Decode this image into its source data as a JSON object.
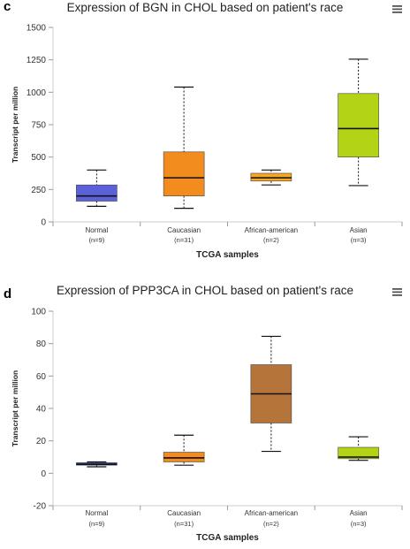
{
  "panels": [
    {
      "letter": "c"
    },
    {
      "letter": "d"
    }
  ],
  "menu_icon": "hamburger-menu-icon",
  "chart_data": [
    {
      "type": "box",
      "title": "Expression of BGN in CHOL based on patient's race",
      "ylabel": "Transcript per million",
      "xlabel": "TCGA samples",
      "ylim": [
        0,
        1500
      ],
      "yticks": [
        0,
        250,
        500,
        750,
        1000,
        1250,
        1500
      ],
      "categories": [
        "Normal",
        "Caucasian",
        "African-american",
        "Asian"
      ],
      "sample_counts": [
        "(n=9)",
        "(n=31)",
        "(n=2)",
        "(n=3)"
      ],
      "colors": [
        "#5b62d9",
        "#f28c1e",
        "#f5a623",
        "#b2d316"
      ],
      "boxes": [
        {
          "min": 120,
          "q1": 160,
          "median": 200,
          "q3": 285,
          "max": 400
        },
        {
          "min": 105,
          "q1": 200,
          "median": 340,
          "q3": 540,
          "max": 1040
        },
        {
          "min": 285,
          "q1": 315,
          "median": 340,
          "q3": 375,
          "max": 400
        },
        {
          "min": 280,
          "q1": 500,
          "median": 720,
          "q3": 990,
          "max": 1255
        }
      ]
    },
    {
      "type": "box",
      "title": "Expression of PPP3CA in CHOL based on patient's race",
      "ylabel": "Transcript per million",
      "xlabel": "TCGA samples",
      "ylim": [
        -20,
        100
      ],
      "yticks": [
        -20,
        0,
        20,
        40,
        60,
        80,
        100
      ],
      "categories": [
        "Normal",
        "Caucasian",
        "African-american",
        "Asian"
      ],
      "sample_counts": [
        "(n=9)",
        "(n=31)",
        "(n=2)",
        "(n=3)"
      ],
      "colors": [
        "#2b3fb0",
        "#f28c1e",
        "#b5743a",
        "#b2d316"
      ],
      "boxes": [
        {
          "min": 4,
          "q1": 5,
          "median": 5.5,
          "q3": 6.5,
          "max": 7
        },
        {
          "min": 5,
          "q1": 7,
          "median": 9.5,
          "q3": 13,
          "max": 23.5
        },
        {
          "min": 13.5,
          "q1": 31,
          "median": 49,
          "q3": 67,
          "max": 84.5
        },
        {
          "min": 8,
          "q1": 9,
          "median": 10,
          "q3": 16,
          "max": 22.5
        }
      ]
    }
  ]
}
